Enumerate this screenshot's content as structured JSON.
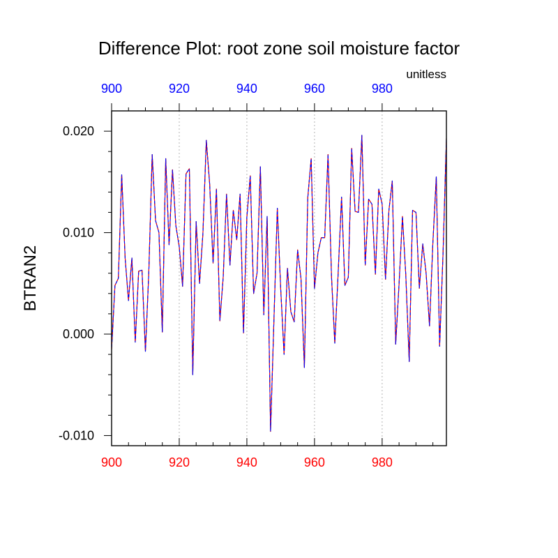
{
  "chart_data": {
    "type": "line",
    "title": "Difference Plot: root zone soil moisture factor",
    "units": "unitless",
    "ylabel": "BTRAN2",
    "xlabel": "",
    "xlim": [
      900,
      999
    ],
    "ylim": [
      -0.011,
      0.022
    ],
    "x_ticks": [
      900,
      920,
      940,
      960,
      980
    ],
    "x_tick_labels": [
      "900",
      "920",
      "940",
      "960",
      "980"
    ],
    "y_ticks": [
      -0.01,
      0.0,
      0.01,
      0.02
    ],
    "y_tick_labels": [
      "-0.010",
      "0.000",
      "0.010",
      "0.020"
    ],
    "grid": "vertical dotted at major x ticks",
    "colors": {
      "bottom_axis_labels": "#ff0000",
      "top_axis_labels": "#0000ff",
      "series_a": "#000000",
      "series_b": "#ff0000",
      "series_c": "#0000ff"
    },
    "x_start": 900,
    "series": [
      {
        "name": "BTRAN2 (solid)",
        "color": "#000000",
        "style": "solid"
      },
      {
        "name": "BTRAN2 (red dashed)",
        "color": "#ff0000",
        "style": "dashed"
      },
      {
        "name": "BTRAN2 (blue dashed)",
        "color": "#0000ff",
        "style": "dashed"
      }
    ],
    "values": [
      -0.0015,
      0.0048,
      0.0055,
      0.0157,
      0.0075,
      0.0033,
      0.0075,
      -0.0008,
      0.0062,
      0.0063,
      -0.0017,
      0.006,
      0.0177,
      0.0112,
      0.01,
      0.0002,
      0.0173,
      0.0088,
      0.0162,
      0.0107,
      0.0086,
      0.0047,
      0.0158,
      0.0163,
      -0.004,
      0.0111,
      0.005,
      0.0099,
      0.0191,
      0.0148,
      0.007,
      0.0143,
      0.0013,
      0.0056,
      0.0138,
      0.0068,
      0.0122,
      0.0093,
      0.0138,
      0.0001,
      0.0115,
      0.0156,
      0.004,
      0.006,
      0.0165,
      0.0019,
      0.0116,
      -0.0096,
      0.0013,
      0.0124,
      0.0045,
      -0.002,
      0.0065,
      0.0022,
      0.0012,
      0.0083,
      0.0055,
      -0.0033,
      0.0134,
      0.0173,
      0.0045,
      0.008,
      0.0095,
      0.0095,
      0.0177,
      0.0058,
      -0.0009,
      0.006,
      0.0135,
      0.0048,
      0.0056,
      0.0183,
      0.0121,
      0.012,
      0.0196,
      0.0068,
      0.0133,
      0.0128,
      0.0059,
      0.0143,
      0.0128,
      0.0054,
      0.0122,
      0.0151,
      -0.001,
      0.0049,
      0.0116,
      0.0058,
      -0.0027,
      0.0122,
      0.012,
      0.0045,
      0.0089,
      0.006,
      0.0008,
      0.009,
      0.0155,
      -0.0012,
      0.008,
      0.0193
    ]
  }
}
